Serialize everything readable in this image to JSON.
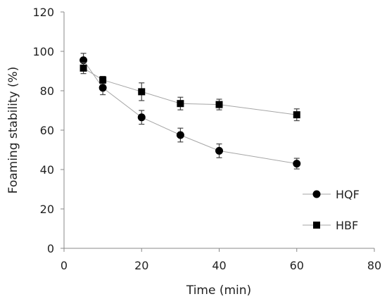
{
  "chart_data": {
    "type": "line",
    "title": "",
    "xlabel": "Time (min)",
    "ylabel": "Foaming stability (%)",
    "xlim": [
      0,
      80
    ],
    "ylim": [
      0,
      120
    ],
    "x_ticks": [
      "0",
      "20",
      "40",
      "60",
      "80"
    ],
    "y_ticks": [
      "0",
      "20",
      "40",
      "60",
      "80",
      "100",
      "120"
    ],
    "grid": false,
    "legend_position": "bottom-right",
    "line_color": "#a6a6a6",
    "marker_color": "#000000",
    "series": [
      {
        "name": "HQF",
        "marker": "circle",
        "x": [
          5,
          10,
          20,
          30,
          40,
          60
        ],
        "y": [
          95.5,
          81.5,
          66.5,
          57.5,
          49.5,
          43.0
        ],
        "error": [
          3.5,
          3.5,
          3.5,
          3.5,
          3.5,
          2.7
        ]
      },
      {
        "name": "HBF",
        "marker": "square",
        "x": [
          5,
          10,
          20,
          30,
          40,
          60
        ],
        "y": [
          91.5,
          85.5,
          79.5,
          73.5,
          73.0,
          67.8
        ],
        "error": [
          2.8,
          1.8,
          4.5,
          3.2,
          2.7,
          3.0
        ]
      }
    ]
  }
}
